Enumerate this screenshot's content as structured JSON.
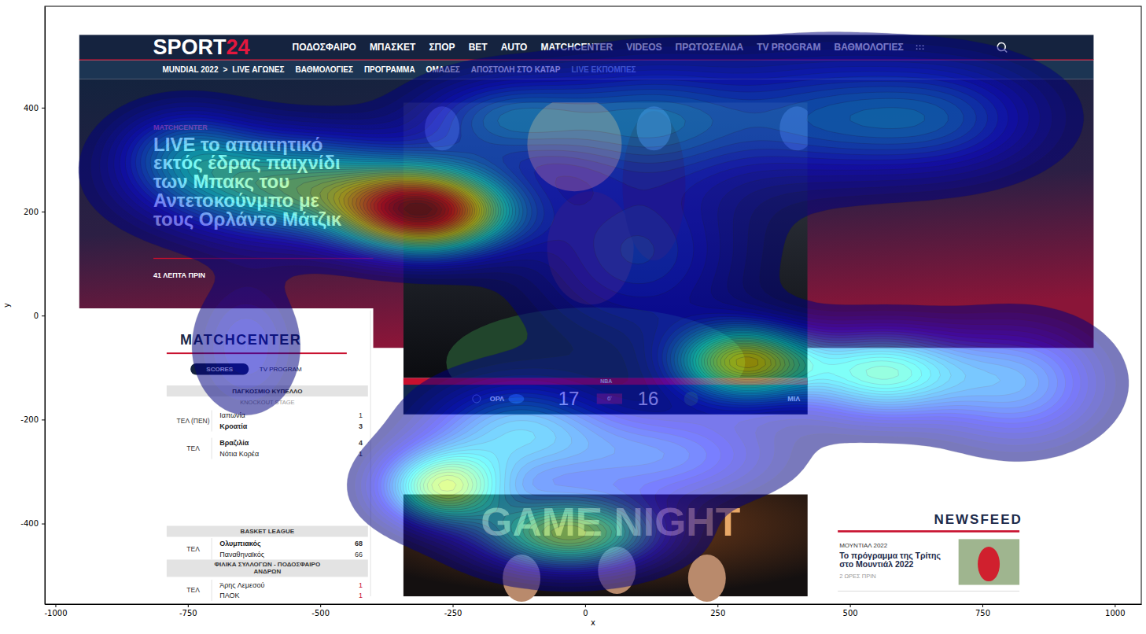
{
  "chart_data": {
    "type": "density_heatmap",
    "xlabel": "x",
    "ylabel": "y",
    "xlim": [
      -1020,
      1050
    ],
    "ylim": [
      -555,
      595
    ],
    "xticks": [
      -1000,
      -750,
      -500,
      -250,
      0,
      250,
      500,
      750,
      1000
    ],
    "yticks": [
      -400,
      -200,
      0,
      200,
      400
    ],
    "hotspots": [
      {
        "x": -300,
        "y": 200,
        "sx": 110,
        "sy": 55,
        "weight": 1
      },
      {
        "x": -560,
        "y": 250,
        "sx": 170,
        "sy": 70,
        "weight": 0.55
      },
      {
        "x": -760,
        "y": 320,
        "sx": 90,
        "sy": 60,
        "weight": 0.25
      },
      {
        "x": -150,
        "y": 380,
        "sx": 120,
        "sy": 60,
        "weight": 0.3
      },
      {
        "x": 130,
        "y": 380,
        "sx": 140,
        "sy": 80,
        "weight": 0.3
      },
      {
        "x": 420,
        "y": 380,
        "sx": 130,
        "sy": 90,
        "weight": 0.2
      },
      {
        "x": 660,
        "y": 380,
        "sx": 150,
        "sy": 80,
        "weight": 0.3
      },
      {
        "x": 300,
        "y": -90,
        "sx": 90,
        "sy": 50,
        "weight": 0.7
      },
      {
        "x": 560,
        "y": -110,
        "sx": 110,
        "sy": 60,
        "weight": 0.5
      },
      {
        "x": 820,
        "y": -130,
        "sx": 110,
        "sy": 80,
        "weight": 0.3
      },
      {
        "x": -270,
        "y": -330,
        "sx": 80,
        "sy": 50,
        "weight": 0.6
      },
      {
        "x": -30,
        "y": -420,
        "sx": 120,
        "sy": 50,
        "weight": 0.6
      },
      {
        "x": -130,
        "y": -220,
        "sx": 120,
        "sy": 70,
        "weight": 0.35
      },
      {
        "x": 100,
        "y": 120,
        "sx": 150,
        "sy": 120,
        "weight": 0.25
      },
      {
        "x": -640,
        "y": -60,
        "sx": 70,
        "sy": 90,
        "weight": 0.15
      },
      {
        "x": 150,
        "y": -270,
        "sx": 150,
        "sy": 60,
        "weight": 0.25
      }
    ]
  },
  "screenshot": {
    "logo": [
      "SPORT",
      "24"
    ],
    "nav": [
      "ΠΟΔΟΣΦΑΙΡΟ",
      "ΜΠΑΣΚΕΤ",
      "ΣΠΟΡ",
      "BET",
      "AUTO",
      "MATCHCENTER",
      "VIDEOS",
      "ΠΡΩΤΟΣΕΛΙΔΑ",
      "TV PROGRAM",
      "ΒΑΘΜΟΛΟΓΙΕΣ"
    ],
    "subnav": [
      "MUNDIAL 2022",
      ">",
      "LIVE ΑΓΩΝΕΣ",
      "ΒΑΘΜΟΛΟΓΙΕΣ",
      "ΠΡΟΓΡΑΜΜΑ",
      "ΟΜΑΔΕΣ",
      "ΑΠΟΣΤΟΛΗ ΣΤΟ ΚΑΤΑΡ",
      "LIVE ΕΚΠΟΜΠΕΣ"
    ],
    "hero": {
      "kicker": "MATCHCENTER",
      "headline": [
        "LIVE το απαιτητικό",
        "εκτός έδρας παιχνίδι",
        "των Μπακς του",
        "Αντετοκούνμπο με",
        "τους Ορλάντο Μάτζικ"
      ],
      "time": "41 ΛΕΠΤΑ ΠΡΙΝ"
    },
    "score": {
      "league": "NBA",
      "home": "ΟΡΛ",
      "home_score": 17,
      "clock": "6'",
      "away_score": 16,
      "away": "ΜΙΛ"
    },
    "matchcenter": {
      "title": "MATCHCENTER",
      "tabs": [
        "SCORES",
        "TV PROGRAM"
      ],
      "groups": [
        {
          "title": [
            "ΠΑΓΚΟΣΜΙΟ ΚΥΠΕΛΛΟ"
          ],
          "subtitle": "KNOCKOUT STAGE",
          "games": [
            {
              "status": "ΤΕΛ (ΠΕΝ)",
              "teams": [
                "Ιαπωνία",
                "Κροατία"
              ],
              "scores": [
                1,
                3
              ]
            },
            {
              "status": "ΤΕΛ",
              "teams": [
                "Βραζιλία",
                "Νότια Κορέα"
              ],
              "scores": [
                4,
                1
              ]
            }
          ]
        },
        {
          "title": [
            "BASKET LEAGUE"
          ],
          "games": [
            {
              "status": "ΤΕΛ",
              "teams": [
                "Ολυμπιακός",
                "Παναθηναϊκός"
              ],
              "scores": [
                68,
                66
              ]
            }
          ]
        },
        {
          "title": [
            "ΦΙΛΙΚΑ ΣΥΛΛΟΓΩΝ - ΠΟΔΟΣΦΑΙΡΟ",
            "ΑΝΔΡΩΝ"
          ],
          "games": [
            {
              "status": "ΤΕΛ",
              "teams": [
                "Άρης Λεμεσού",
                "ΠΑΟΚ"
              ],
              "scores": [
                1,
                1
              ]
            }
          ]
        }
      ]
    },
    "banner": "GAME NIGHT",
    "newsfeed": {
      "title": "NEWSFEED",
      "category": "ΜΟΥΝΤΙΑΛ 2022",
      "headline": [
        "Το πρόγραμμα της Τρίτης",
        "στο Μουντιάλ 2022"
      ],
      "time": "2 ΩΡΕΣ ΠΡΙΝ"
    }
  }
}
